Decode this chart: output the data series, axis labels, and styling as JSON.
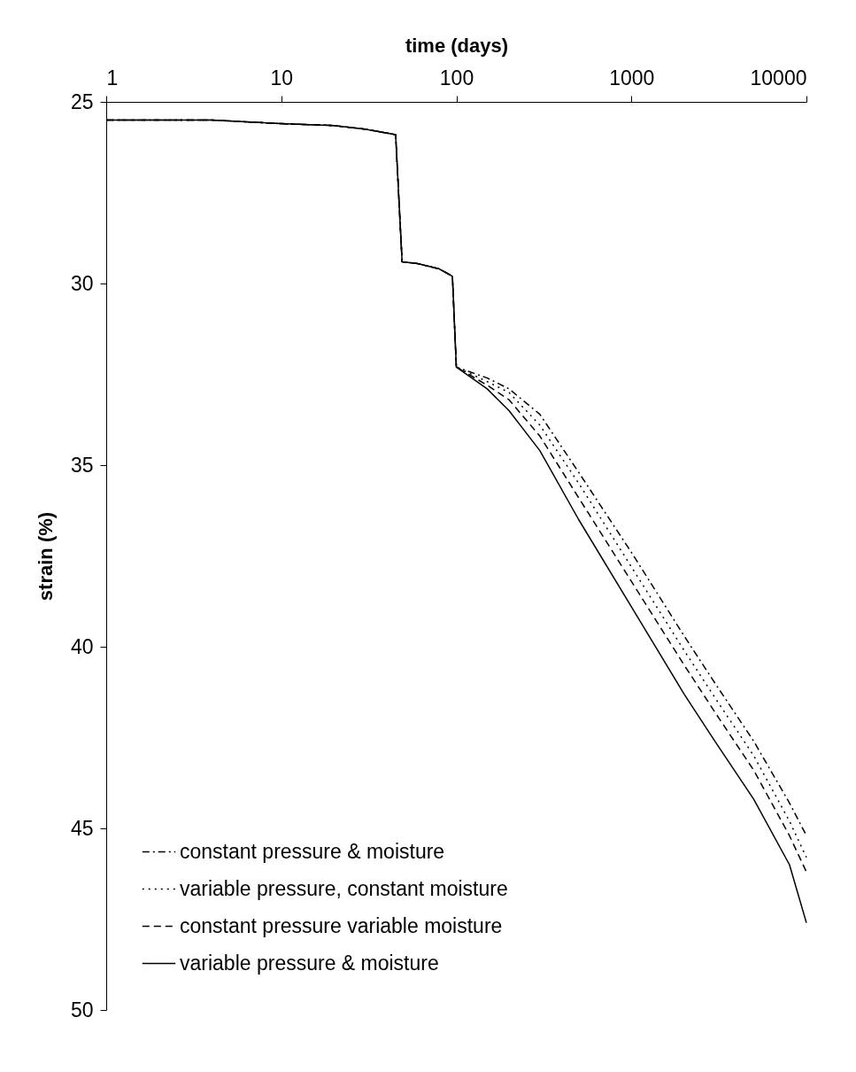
{
  "chart_data": {
    "type": "line",
    "xlabel": "time (days)",
    "ylabel": "strain (%)",
    "log": "x",
    "xlim": [
      1,
      10000
    ],
    "xticks": [
      1,
      10,
      100,
      1000,
      10000
    ],
    "ylim": [
      50,
      25
    ],
    "yticks": [
      25,
      30,
      35,
      40,
      45,
      50
    ],
    "legend": "bottom left",
    "series": [
      {
        "name": "constant pressure & moisture",
        "color": "#000000",
        "line_style": "dashdot",
        "x": [
          1,
          4,
          10,
          20,
          30,
          45,
          49,
          60,
          80,
          95,
          100,
          150,
          200,
          300,
          500,
          1000,
          2000,
          3000,
          5000,
          8000,
          10000
        ],
        "values": [
          25.5,
          25.5,
          25.6,
          25.65,
          25.75,
          25.9,
          29.4,
          29.45,
          29.6,
          29.8,
          32.3,
          32.6,
          32.9,
          33.6,
          35.2,
          37.4,
          39.7,
          41.0,
          42.6,
          44.3,
          45.2
        ]
      },
      {
        "name": "variable pressure, constant moisture",
        "color": "#000000",
        "line_style": "dotted",
        "x": [
          1,
          4,
          10,
          20,
          30,
          45,
          49,
          60,
          80,
          95,
          100,
          150,
          200,
          300,
          500,
          1000,
          2000,
          3000,
          5000,
          8000,
          10000
        ],
        "values": [
          25.5,
          25.5,
          25.6,
          25.65,
          25.75,
          25.9,
          29.4,
          29.45,
          29.6,
          29.8,
          32.3,
          32.7,
          33.0,
          33.9,
          35.5,
          37.8,
          40.1,
          41.4,
          43.0,
          44.8,
          45.8
        ]
      },
      {
        "name": "constant pressure variable moisture",
        "color": "#000000",
        "line_style": "dashed",
        "x": [
          1,
          4,
          10,
          20,
          30,
          45,
          49,
          60,
          80,
          95,
          100,
          150,
          200,
          300,
          500,
          1000,
          2000,
          3000,
          5000,
          8000,
          10000
        ],
        "values": [
          25.5,
          25.5,
          25.6,
          25.65,
          25.75,
          25.9,
          29.4,
          29.45,
          29.6,
          29.8,
          32.3,
          32.8,
          33.2,
          34.2,
          35.9,
          38.2,
          40.5,
          41.8,
          43.4,
          45.2,
          46.2
        ]
      },
      {
        "name": "variable pressure & moisture",
        "color": "#000000",
        "line_style": "solid",
        "x": [
          1,
          4,
          10,
          20,
          30,
          45,
          49,
          60,
          80,
          95,
          100,
          150,
          200,
          300,
          500,
          1000,
          2000,
          3000,
          5000,
          8000,
          10000
        ],
        "values": [
          25.5,
          25.5,
          25.6,
          25.65,
          25.75,
          25.9,
          29.4,
          29.45,
          29.6,
          29.8,
          32.3,
          32.9,
          33.5,
          34.6,
          36.5,
          38.9,
          41.3,
          42.6,
          44.2,
          46.0,
          47.6
        ]
      }
    ]
  }
}
